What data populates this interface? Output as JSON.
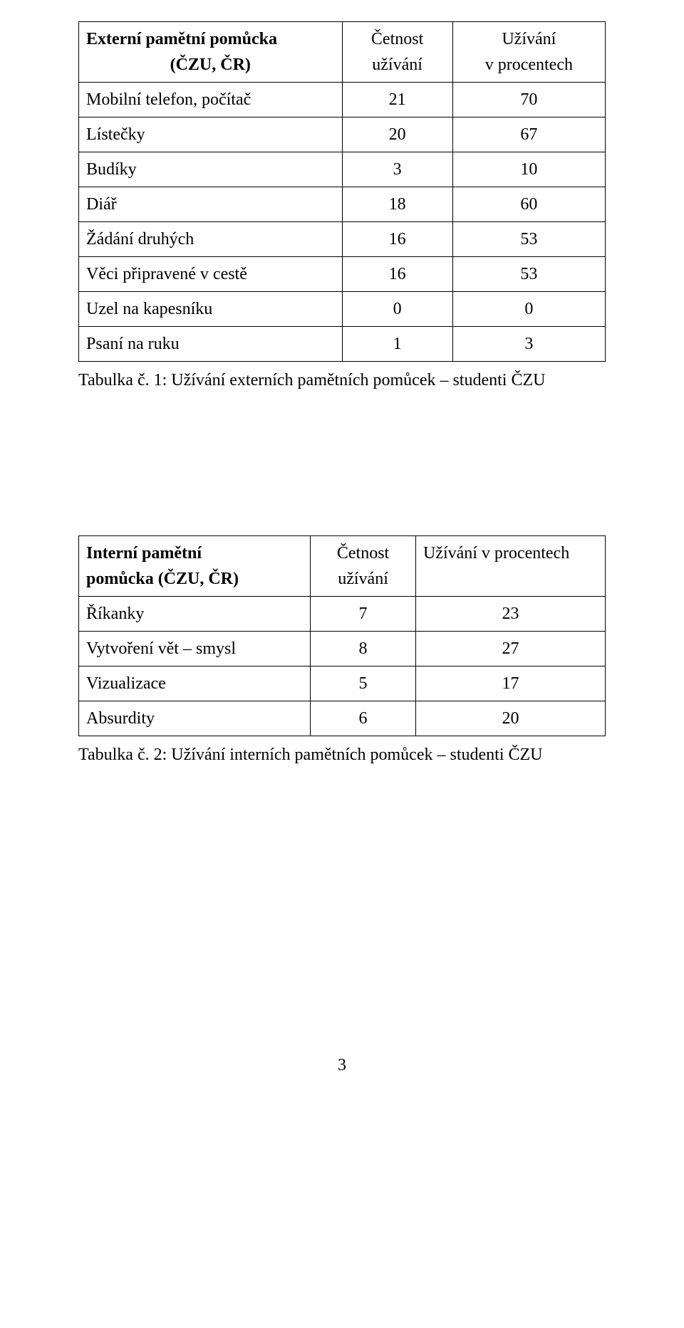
{
  "table1": {
    "header": {
      "name_line1": "Externí pamětní pomůcka",
      "name_line2": "(ČZU, ČR)",
      "freq_line1": "Četnost",
      "freq_line2": "užívání",
      "pct_line1": "Užívání",
      "pct_line2": "v procentech"
    },
    "rows": [
      {
        "name": "Mobilní telefon, počítač",
        "freq": "21",
        "pct": "70"
      },
      {
        "name": "Lístečky",
        "freq": "20",
        "pct": "67"
      },
      {
        "name": "Budíky",
        "freq": "3",
        "pct": "10"
      },
      {
        "name": "Diář",
        "freq": "18",
        "pct": "60"
      },
      {
        "name": "Žádání druhých",
        "freq": "16",
        "pct": "53"
      },
      {
        "name": "Věci připravené v cestě",
        "freq": "16",
        "pct": "53"
      },
      {
        "name": "Uzel na kapesníku",
        "freq": "0",
        "pct": "0"
      },
      {
        "name": "Psaní na ruku",
        "freq": "1",
        "pct": "3"
      }
    ],
    "caption": "Tabulka č. 1: Užívání externích pamětních pomůcek – studenti ČZU"
  },
  "table2": {
    "header": {
      "name_line1": "Interní pamětní",
      "name_line2": "pomůcka (ČZU, ČR)",
      "freq_line1": "Četnost",
      "freq_line2": "užívání",
      "pct": "Užívání v procentech"
    },
    "rows": [
      {
        "name": "Říkanky",
        "freq": "7",
        "pct": "23"
      },
      {
        "name": "Vytvoření vět – smysl",
        "freq": "8",
        "pct": "27"
      },
      {
        "name": "Vizualizace",
        "freq": "5",
        "pct": "17"
      },
      {
        "name": "Absurdity",
        "freq": "6",
        "pct": "20"
      }
    ],
    "caption": "Tabulka č. 2: Užívání interních pamětních pomůcek – studenti ČZU"
  },
  "page_number": "3",
  "style": {
    "font_family": "Times New Roman",
    "font_size_pt": 12,
    "text_color": "#000000",
    "background_color": "#ffffff",
    "border_color": "#000000"
  }
}
